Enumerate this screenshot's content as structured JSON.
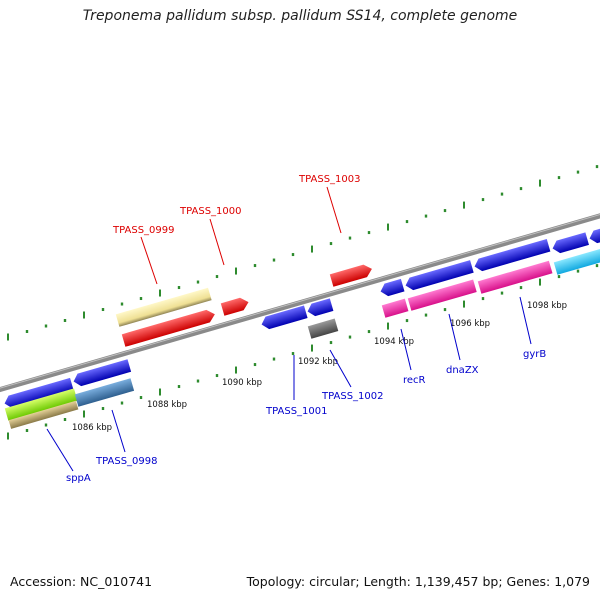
{
  "header": {
    "title": "Treponema pallidum subsp. pallidum SS14, complete genome"
  },
  "footer": {
    "accession": "Accession: NC_010741",
    "info": "Topology: circular; Length: 1,139,457 bp; Genes: 1,079"
  },
  "colors": {
    "backbone": "#8a8a8a",
    "tick": "#2e8b2e",
    "label_top": "#dd0000",
    "label_bottom": "#0000cc"
  },
  "scale_labels": [
    "1086 kbp",
    "1088 kbp",
    "1090 kbp",
    "1092 kbp",
    "1094 kbp",
    "1096 kbp",
    "1098 kbp"
  ],
  "gene_labels_top": [
    "TPASS_0999",
    "TPASS_1000",
    "TPASS_1003"
  ],
  "gene_labels_bottom": [
    "sppA",
    "TPASS_0998",
    "TPASS_1001",
    "TPASS_1002",
    "recR",
    "dnaZX",
    "gyrB"
  ]
}
